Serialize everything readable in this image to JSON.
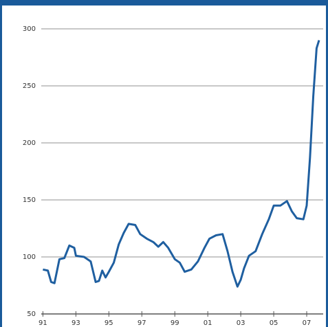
{
  "chart_data": {
    "type": "line",
    "x": [
      1991.0,
      1991.3,
      1991.5,
      1991.7,
      1992.0,
      1992.3,
      1992.6,
      1992.9,
      1993.0,
      1993.5,
      1993.9,
      1994.2,
      1994.4,
      1994.6,
      1994.8,
      1995.0,
      1995.3,
      1995.6,
      1995.9,
      1996.2,
      1996.6,
      1996.9,
      1997.3,
      1997.7,
      1998.0,
      1998.3,
      1998.6,
      1999.0,
      1999.3,
      1999.6,
      2000.0,
      2000.4,
      2000.8,
      2001.1,
      2001.5,
      2001.9,
      2002.2,
      2002.5,
      2002.8,
      2003.0,
      2003.2,
      2003.5,
      2003.9,
      2004.3,
      2004.7,
      2005.0,
      2005.4,
      2005.8,
      2006.1,
      2006.4,
      2006.8,
      2007.0,
      2007.2,
      2007.4,
      2007.6,
      2007.75
    ],
    "series": [
      {
        "color": "#1f5fa0",
        "values": [
          89,
          88,
          78,
          77,
          98,
          99,
          110,
          108,
          101,
          100,
          96,
          78,
          79,
          88,
          82,
          87,
          95,
          111,
          121,
          129,
          128,
          120,
          116,
          113,
          109,
          113,
          108,
          98,
          95,
          87,
          89,
          96,
          108,
          116,
          119,
          120,
          105,
          87,
          74,
          80,
          90,
          101,
          105,
          120,
          133,
          145,
          145,
          149,
          140,
          134,
          133,
          145,
          187,
          241,
          283,
          290
        ]
      }
    ],
    "xlim": [
      1990.9,
      2008.0
    ],
    "xticks": [
      {
        "value": 1991,
        "label": "91"
      },
      {
        "value": 1993,
        "label": "93"
      },
      {
        "value": 1995,
        "label": "95"
      },
      {
        "value": 1997,
        "label": "97"
      },
      {
        "value": 1999,
        "label": "99"
      },
      {
        "value": 2001,
        "label": "01"
      },
      {
        "value": 2003,
        "label": "03"
      },
      {
        "value": 2005,
        "label": "05"
      },
      {
        "value": 2007,
        "label": "07"
      }
    ],
    "ylim": [
      50,
      300
    ],
    "yticks": [
      50,
      100,
      150,
      200,
      250,
      300
    ],
    "grid": true
  }
}
